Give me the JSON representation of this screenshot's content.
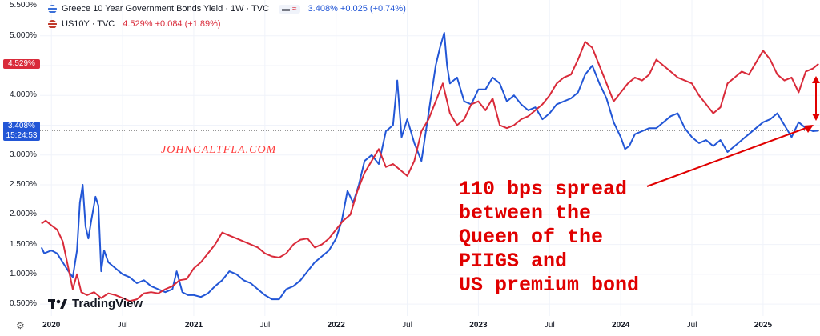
{
  "legend": {
    "greece": {
      "title": "Greece 10 Year Government Bonds Yield · 1W · TVC",
      "values": "3.408% +0.025 (+0.74%)",
      "flag_color": "#3a6fd8"
    },
    "us": {
      "title": "US10Y · TVC",
      "values": "4.529% +0.084 (+1.89%)",
      "flag_color": "#c0392b"
    }
  },
  "price_tags": {
    "us_tag": "4.529%",
    "greece_tag": "3.408%",
    "countdown": "15:24:53"
  },
  "watermark": "JOHNGALTFLA.COM",
  "annotation": "110 bps spread\nbetween the\nQueen of the\nPIIGS and\nUS premium bond",
  "branding": "TradingView",
  "icons": {
    "settings": "gear-icon",
    "logo": "tradingview-logo-icon"
  },
  "colors": {
    "greece": "#2256d6",
    "us": "#d92b3a",
    "annotation": "#e00000"
  },
  "chart_data": {
    "type": "line",
    "x_unit": "year",
    "xlim": [
      2019.92,
      2025.4
    ],
    "ylim": [
      0.3,
      5.6
    ],
    "y_ticks": [
      "0.500%",
      "1.000%",
      "1.500%",
      "2.000%",
      "2.500%",
      "3.000%",
      "3.500%",
      "4.000%",
      "4.500%",
      "5.000%",
      "5.500%"
    ],
    "x_ticks": [
      {
        "label": "2020",
        "x": 2020.0,
        "bold": true
      },
      {
        "label": "Jul",
        "x": 2020.5,
        "bold": false
      },
      {
        "label": "2021",
        "x": 2021.0,
        "bold": true
      },
      {
        "label": "Jul",
        "x": 2021.5,
        "bold": false
      },
      {
        "label": "2022",
        "x": 2022.0,
        "bold": true
      },
      {
        "label": "Jul",
        "x": 2022.5,
        "bold": false
      },
      {
        "label": "2023",
        "x": 2023.0,
        "bold": true
      },
      {
        "label": "Jul",
        "x": 2023.5,
        "bold": false
      },
      {
        "label": "2024",
        "x": 2024.0,
        "bold": true
      },
      {
        "label": "Jul",
        "x": 2024.5,
        "bold": false
      },
      {
        "label": "2025",
        "x": 2025.0,
        "bold": true
      }
    ],
    "series": [
      {
        "name": "Greece 10 Year Government Bonds Yield",
        "color": "#2256d6",
        "points": [
          [
            2019.93,
            1.45
          ],
          [
            2019.95,
            1.35
          ],
          [
            2020.0,
            1.4
          ],
          [
            2020.04,
            1.35
          ],
          [
            2020.08,
            1.2
          ],
          [
            2020.12,
            1.05
          ],
          [
            2020.15,
            0.95
          ],
          [
            2020.18,
            1.4
          ],
          [
            2020.2,
            2.2
          ],
          [
            2020.22,
            2.5
          ],
          [
            2020.24,
            1.8
          ],
          [
            2020.26,
            1.6
          ],
          [
            2020.28,
            1.9
          ],
          [
            2020.31,
            2.3
          ],
          [
            2020.33,
            2.15
          ],
          [
            2020.35,
            1.05
          ],
          [
            2020.37,
            1.4
          ],
          [
            2020.4,
            1.2
          ],
          [
            2020.45,
            1.1
          ],
          [
            2020.5,
            1.0
          ],
          [
            2020.55,
            0.95
          ],
          [
            2020.6,
            0.85
          ],
          [
            2020.65,
            0.9
          ],
          [
            2020.7,
            0.8
          ],
          [
            2020.75,
            0.75
          ],
          [
            2020.8,
            0.7
          ],
          [
            2020.85,
            0.75
          ],
          [
            2020.88,
            1.05
          ],
          [
            2020.92,
            0.7
          ],
          [
            2020.96,
            0.65
          ],
          [
            2021.0,
            0.65
          ],
          [
            2021.05,
            0.62
          ],
          [
            2021.1,
            0.68
          ],
          [
            2021.15,
            0.8
          ],
          [
            2021.2,
            0.9
          ],
          [
            2021.25,
            1.05
          ],
          [
            2021.3,
            1.0
          ],
          [
            2021.35,
            0.9
          ],
          [
            2021.4,
            0.85
          ],
          [
            2021.45,
            0.75
          ],
          [
            2021.5,
            0.65
          ],
          [
            2021.55,
            0.58
          ],
          [
            2021.6,
            0.58
          ],
          [
            2021.65,
            0.75
          ],
          [
            2021.7,
            0.8
          ],
          [
            2021.75,
            0.9
          ],
          [
            2021.8,
            1.05
          ],
          [
            2021.85,
            1.2
          ],
          [
            2021.9,
            1.3
          ],
          [
            2021.95,
            1.4
          ],
          [
            2022.0,
            1.6
          ],
          [
            2022.04,
            1.9
          ],
          [
            2022.08,
            2.4
          ],
          [
            2022.12,
            2.2
          ],
          [
            2022.16,
            2.5
          ],
          [
            2022.2,
            2.9
          ],
          [
            2022.25,
            3.0
          ],
          [
            2022.3,
            2.85
          ],
          [
            2022.35,
            3.4
          ],
          [
            2022.4,
            3.5
          ],
          [
            2022.43,
            4.25
          ],
          [
            2022.46,
            3.3
          ],
          [
            2022.5,
            3.6
          ],
          [
            2022.55,
            3.2
          ],
          [
            2022.6,
            2.9
          ],
          [
            2022.65,
            3.7
          ],
          [
            2022.7,
            4.5
          ],
          [
            2022.73,
            4.8
          ],
          [
            2022.76,
            5.05
          ],
          [
            2022.78,
            4.5
          ],
          [
            2022.8,
            4.2
          ],
          [
            2022.85,
            4.3
          ],
          [
            2022.9,
            3.9
          ],
          [
            2022.95,
            3.85
          ],
          [
            2023.0,
            4.1
          ],
          [
            2023.05,
            4.1
          ],
          [
            2023.1,
            4.3
          ],
          [
            2023.15,
            4.2
          ],
          [
            2023.2,
            3.9
          ],
          [
            2023.25,
            4.0
          ],
          [
            2023.3,
            3.85
          ],
          [
            2023.35,
            3.75
          ],
          [
            2023.4,
            3.8
          ],
          [
            2023.45,
            3.6
          ],
          [
            2023.5,
            3.7
          ],
          [
            2023.55,
            3.85
          ],
          [
            2023.6,
            3.9
          ],
          [
            2023.65,
            3.95
          ],
          [
            2023.7,
            4.05
          ],
          [
            2023.75,
            4.35
          ],
          [
            2023.8,
            4.5
          ],
          [
            2023.85,
            4.2
          ],
          [
            2023.9,
            3.95
          ],
          [
            2023.95,
            3.55
          ],
          [
            2024.0,
            3.3
          ],
          [
            2024.03,
            3.1
          ],
          [
            2024.06,
            3.15
          ],
          [
            2024.1,
            3.35
          ],
          [
            2024.15,
            3.4
          ],
          [
            2024.2,
            3.45
          ],
          [
            2024.25,
            3.45
          ],
          [
            2024.3,
            3.55
          ],
          [
            2024.35,
            3.65
          ],
          [
            2024.4,
            3.7
          ],
          [
            2024.45,
            3.45
          ],
          [
            2024.5,
            3.3
          ],
          [
            2024.55,
            3.2
          ],
          [
            2024.6,
            3.25
          ],
          [
            2024.65,
            3.15
          ],
          [
            2024.7,
            3.25
          ],
          [
            2024.75,
            3.05
          ],
          [
            2024.8,
            3.15
          ],
          [
            2024.85,
            3.25
          ],
          [
            2024.9,
            3.35
          ],
          [
            2024.95,
            3.45
          ],
          [
            2025.0,
            3.55
          ],
          [
            2025.05,
            3.6
          ],
          [
            2025.1,
            3.7
          ],
          [
            2025.15,
            3.5
          ],
          [
            2025.2,
            3.3
          ],
          [
            2025.25,
            3.55
          ],
          [
            2025.3,
            3.45
          ],
          [
            2025.35,
            3.4
          ],
          [
            2025.39,
            3.408
          ]
        ]
      },
      {
        "name": "US10Y",
        "color": "#d92b3a",
        "points": [
          [
            2019.93,
            1.85
          ],
          [
            2019.96,
            1.9
          ],
          [
            2020.0,
            1.82
          ],
          [
            2020.04,
            1.75
          ],
          [
            2020.08,
            1.55
          ],
          [
            2020.12,
            1.1
          ],
          [
            2020.15,
            0.75
          ],
          [
            2020.18,
            1.0
          ],
          [
            2020.21,
            0.7
          ],
          [
            2020.25,
            0.65
          ],
          [
            2020.3,
            0.7
          ],
          [
            2020.35,
            0.6
          ],
          [
            2020.4,
            0.68
          ],
          [
            2020.45,
            0.65
          ],
          [
            2020.5,
            0.6
          ],
          [
            2020.55,
            0.55
          ],
          [
            2020.6,
            0.58
          ],
          [
            2020.65,
            0.68
          ],
          [
            2020.7,
            0.7
          ],
          [
            2020.75,
            0.68
          ],
          [
            2020.8,
            0.75
          ],
          [
            2020.85,
            0.8
          ],
          [
            2020.9,
            0.9
          ],
          [
            2020.95,
            0.92
          ],
          [
            2021.0,
            1.1
          ],
          [
            2021.05,
            1.2
          ],
          [
            2021.1,
            1.35
          ],
          [
            2021.15,
            1.5
          ],
          [
            2021.2,
            1.7
          ],
          [
            2021.25,
            1.65
          ],
          [
            2021.3,
            1.6
          ],
          [
            2021.35,
            1.55
          ],
          [
            2021.4,
            1.5
          ],
          [
            2021.45,
            1.45
          ],
          [
            2021.5,
            1.35
          ],
          [
            2021.55,
            1.3
          ],
          [
            2021.6,
            1.28
          ],
          [
            2021.65,
            1.35
          ],
          [
            2021.7,
            1.5
          ],
          [
            2021.75,
            1.58
          ],
          [
            2021.8,
            1.6
          ],
          [
            2021.85,
            1.45
          ],
          [
            2021.9,
            1.5
          ],
          [
            2021.95,
            1.6
          ],
          [
            2022.0,
            1.75
          ],
          [
            2022.05,
            1.9
          ],
          [
            2022.1,
            2.0
          ],
          [
            2022.15,
            2.4
          ],
          [
            2022.2,
            2.7
          ],
          [
            2022.25,
            2.9
          ],
          [
            2022.3,
            3.1
          ],
          [
            2022.35,
            2.8
          ],
          [
            2022.4,
            2.85
          ],
          [
            2022.45,
            2.75
          ],
          [
            2022.5,
            2.65
          ],
          [
            2022.55,
            2.9
          ],
          [
            2022.6,
            3.4
          ],
          [
            2022.65,
            3.6
          ],
          [
            2022.7,
            3.9
          ],
          [
            2022.75,
            4.2
          ],
          [
            2022.8,
            3.7
          ],
          [
            2022.85,
            3.5
          ],
          [
            2022.9,
            3.6
          ],
          [
            2022.95,
            3.85
          ],
          [
            2023.0,
            3.9
          ],
          [
            2023.05,
            3.75
          ],
          [
            2023.1,
            3.95
          ],
          [
            2023.15,
            3.5
          ],
          [
            2023.2,
            3.45
          ],
          [
            2023.25,
            3.5
          ],
          [
            2023.3,
            3.6
          ],
          [
            2023.35,
            3.65
          ],
          [
            2023.4,
            3.75
          ],
          [
            2023.45,
            3.85
          ],
          [
            2023.5,
            4.0
          ],
          [
            2023.55,
            4.2
          ],
          [
            2023.6,
            4.3
          ],
          [
            2023.65,
            4.35
          ],
          [
            2023.7,
            4.6
          ],
          [
            2023.75,
            4.9
          ],
          [
            2023.8,
            4.8
          ],
          [
            2023.85,
            4.5
          ],
          [
            2023.9,
            4.2
          ],
          [
            2023.95,
            3.9
          ],
          [
            2024.0,
            4.05
          ],
          [
            2024.05,
            4.2
          ],
          [
            2024.1,
            4.3
          ],
          [
            2024.15,
            4.25
          ],
          [
            2024.2,
            4.35
          ],
          [
            2024.25,
            4.6
          ],
          [
            2024.3,
            4.5
          ],
          [
            2024.35,
            4.4
          ],
          [
            2024.4,
            4.3
          ],
          [
            2024.45,
            4.25
          ],
          [
            2024.5,
            4.2
          ],
          [
            2024.55,
            4.0
          ],
          [
            2024.6,
            3.85
          ],
          [
            2024.65,
            3.7
          ],
          [
            2024.7,
            3.8
          ],
          [
            2024.75,
            4.2
          ],
          [
            2024.8,
            4.3
          ],
          [
            2024.85,
            4.4
          ],
          [
            2024.9,
            4.35
          ],
          [
            2024.95,
            4.55
          ],
          [
            2025.0,
            4.75
          ],
          [
            2025.05,
            4.6
          ],
          [
            2025.1,
            4.35
          ],
          [
            2025.15,
            4.25
          ],
          [
            2025.2,
            4.3
          ],
          [
            2025.25,
            4.05
          ],
          [
            2025.3,
            4.4
          ],
          [
            2025.35,
            4.45
          ],
          [
            2025.39,
            4.529
          ]
        ]
      }
    ]
  }
}
